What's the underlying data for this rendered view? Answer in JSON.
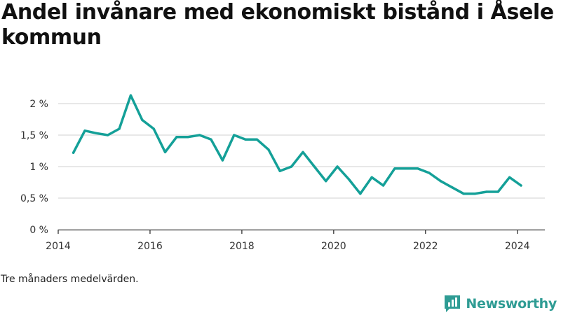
{
  "title": "Andel invånare med ekonomiskt bistånd i Åsele kommun",
  "note": "Tre månaders medelvärden.",
  "brand": {
    "name": "Newsworthy",
    "icon": "newsworthy-logo-icon",
    "color": "#2f9c94"
  },
  "colors": {
    "line": "#14a098",
    "grid": "#d9d9d9",
    "axis": "#333333"
  },
  "chart_data": {
    "type": "line",
    "title": "Andel invånare med ekonomiskt bistånd i Åsele kommun",
    "xlabel": "",
    "ylabel": "",
    "xlim": [
      2014,
      2024.6
    ],
    "ylim": [
      0,
      2.2
    ],
    "grid": true,
    "x_ticks": [
      {
        "value": 2014,
        "label": "2014"
      },
      {
        "value": 2016,
        "label": "2016"
      },
      {
        "value": 2018,
        "label": "2018"
      },
      {
        "value": 2020,
        "label": "2020"
      },
      {
        "value": 2022,
        "label": "2022"
      },
      {
        "value": 2024,
        "label": "2024"
      }
    ],
    "y_ticks": [
      {
        "value": 0,
        "label": "0 %"
      },
      {
        "value": 0.5,
        "label": "0,5 %"
      },
      {
        "value": 1,
        "label": "1 %"
      },
      {
        "value": 1.5,
        "label": "1,5 %"
      },
      {
        "value": 2,
        "label": "2 %"
      }
    ],
    "series": [
      {
        "x": [
          2014.33,
          2014.58,
          2014.83,
          2015.08,
          2015.33,
          2015.58,
          2015.83,
          2016.08,
          2016.33,
          2016.58,
          2016.83,
          2017.08,
          2017.33,
          2017.58,
          2017.83,
          2018.08,
          2018.33,
          2018.58,
          2018.83,
          2019.08,
          2019.33,
          2019.58,
          2019.83,
          2020.08,
          2020.33,
          2020.58,
          2020.83,
          2021.08,
          2021.33,
          2021.58,
          2021.83,
          2022.08,
          2022.33,
          2022.58,
          2022.83,
          2023.08,
          2023.33,
          2023.58,
          2023.83,
          2024.08
        ],
        "values": [
          1.22,
          1.57,
          1.53,
          1.5,
          1.6,
          2.13,
          1.74,
          1.6,
          1.23,
          1.47,
          1.47,
          1.5,
          1.43,
          1.1,
          1.5,
          1.43,
          1.43,
          1.27,
          0.93,
          1.0,
          1.23,
          1.0,
          0.77,
          1.0,
          0.8,
          0.57,
          0.83,
          0.7,
          0.97,
          0.97,
          0.97,
          0.9,
          0.77,
          0.67,
          0.57,
          0.57,
          0.6,
          0.6,
          0.83,
          0.7
        ]
      }
    ]
  }
}
